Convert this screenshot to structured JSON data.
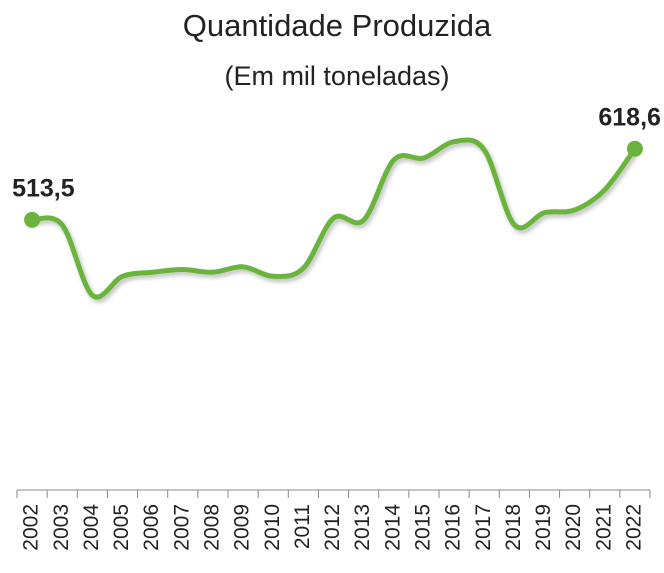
{
  "chart_data": {
    "type": "line",
    "title": "Quantidade Produzida",
    "subtitle": "(Em mil toneladas)",
    "categories": [
      "2002",
      "2003",
      "2004",
      "2005",
      "2006",
      "2007",
      "2008",
      "2009",
      "2010",
      "2011",
      "2012",
      "2013",
      "2014",
      "2015",
      "2016",
      "2017",
      "2018",
      "2019",
      "2020",
      "2021",
      "2022"
    ],
    "series": [
      {
        "name": "Quantidade Produzida",
        "color": "#6ab43e",
        "values": [
          513.5,
          506,
          402,
          430,
          436,
          440,
          436,
          444,
          430,
          442,
          516,
          513,
          602,
          605,
          629,
          617,
          506,
          524,
          528,
          558,
          618.6
        ],
        "value_labels": [
          "513,5",
          null,
          null,
          null,
          null,
          null,
          null,
          null,
          null,
          null,
          null,
          null,
          null,
          null,
          null,
          null,
          null,
          null,
          null,
          null,
          "618,6"
        ]
      }
    ],
    "ylim": [
      100,
      650
    ]
  }
}
